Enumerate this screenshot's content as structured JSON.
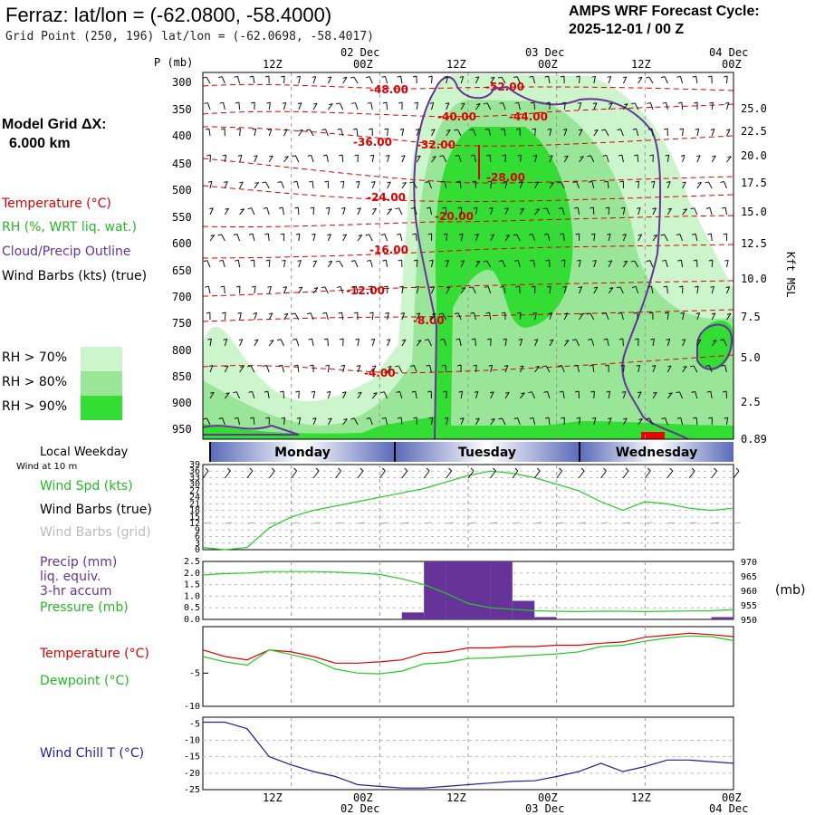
{
  "header": {
    "title": "Ferraz:  lat/lon = (-62.0800, -58.4000)",
    "subtitle": "Grid Point (250, 196) lat/lon = (-62.0698, -58.4017)",
    "cycle_line1": "AMPS WRF Forecast Cycle:",
    "cycle_line2": "2025-12-01 / 00  Z"
  },
  "model_grid": {
    "label": "Model Grid ΔX:",
    "value": "6.000 km"
  },
  "legend": {
    "temperature": "Temperature (°C)",
    "rh": "RH (%, WRT liq. wat.)",
    "cloud": "Cloud/Precip Outline",
    "wind": "Wind Barbs (kts) (true)",
    "rh70": "RH > 70%",
    "rh80": "RH > 80%",
    "rh90": "RH > 90%"
  },
  "colors": {
    "rh70": "#ccf5cc",
    "rh80": "#99e699",
    "rh90": "#33dd33",
    "temp": "#dd0000",
    "cloud": "#663399",
    "green_line": "#22cc22",
    "precip": "#663399",
    "windchill": "#1f1fa0"
  },
  "time_axis": {
    "top_dates": [
      "02 Dec",
      "03 Dec",
      "04 Dec"
    ],
    "hours": [
      "12Z",
      "00Z",
      "12Z",
      "00Z",
      "12Z",
      "00Z"
    ],
    "bottom_dates": [
      "02 Dec",
      "03 Dec",
      "04 Dec"
    ]
  },
  "weekdays": {
    "label": "Local Weekday",
    "days": [
      "Monday",
      "Tuesday",
      "Wednesday"
    ]
  },
  "cross_section": {
    "p_label": "P (mb)",
    "pressure_levels": [
      "300",
      "350",
      "400",
      "450",
      "500",
      "550",
      "600",
      "650",
      "700",
      "750",
      "800",
      "850",
      "900",
      "950"
    ],
    "right_axis_label": "Kft MSL",
    "height_ticks": [
      "25.0",
      "22.5",
      "20.0",
      "17.5",
      "15.0",
      "12.5",
      "10.0",
      "7.5",
      "5.0",
      "2.5",
      "0.89"
    ],
    "temp_labels": [
      "-48.00",
      "-52.00",
      "-40.00",
      "-44.00",
      "-36.00",
      "-32.00",
      "-28.00",
      "-24.00",
      "-20.00",
      "-16.00",
      "-12.00",
      "-8.00",
      "-4.00"
    ]
  },
  "panel_wind": {
    "wind_at": "Wind at 10 m",
    "spd_label": "Wind Spd (kts)",
    "barbs_true": "Wind Barbs (true)",
    "barbs_grid": "Wind Barbs (grid)",
    "y_ticks": [
      "39",
      "36",
      "33",
      "30",
      "27",
      "24",
      "21",
      "18",
      "15",
      "12",
      "9",
      "6",
      "3",
      "0"
    ]
  },
  "panel_precip": {
    "precip_label": "Precip (mm)",
    "liq": "liq. equiv.",
    "accum": "3-hr accum",
    "pressure_label": "Pressure (mb)",
    "y_ticks": [
      "2.5",
      "2.0",
      "1.5",
      "1.0",
      "0.5",
      "0.0"
    ],
    "right_ticks": [
      "970",
      "965",
      "960",
      "955",
      "950"
    ],
    "right_unit": "(mb)"
  },
  "panel_temp": {
    "temp_label": "Temperature (°C)",
    "dew_label": "Dewpoint (°C)",
    "y_ticks": [
      "-5",
      "-10"
    ]
  },
  "panel_chill": {
    "label": "Wind Chill T (°C)",
    "y_ticks": [
      "-5",
      "-10",
      "-15",
      "-20",
      "-25"
    ]
  },
  "chart_data": [
    {
      "type": "line",
      "title": "Wind Spd (kts)",
      "x": [
        0,
        3,
        6,
        9,
        12,
        15,
        18,
        21,
        24,
        27,
        30,
        33,
        36,
        39,
        42,
        45,
        48,
        51,
        54,
        57,
        60,
        63,
        66,
        69,
        72
      ],
      "series": [
        {
          "name": "Wind Spd (kts)",
          "values": [
            1,
            0,
            1,
            10,
            15,
            18,
            20,
            22,
            24,
            26,
            28,
            31,
            34,
            36,
            35,
            33,
            30,
            27,
            22,
            18,
            22,
            21,
            19,
            18,
            19
          ]
        }
      ],
      "ylim": [
        0,
        39
      ]
    },
    {
      "type": "bar",
      "title": "Precip (mm)",
      "x": [
        30,
        33,
        36,
        39,
        42,
        45,
        48,
        51,
        54,
        57,
        60,
        63,
        66,
        69,
        72
      ],
      "series": [
        {
          "name": "Precip (mm)",
          "values": [
            0.3,
            2.5,
            2.5,
            2.5,
            2.5,
            0.8,
            0.1,
            0,
            0,
            0,
            0,
            0,
            0,
            0,
            0.1
          ]
        }
      ],
      "ylim": [
        0,
        2.5
      ]
    },
    {
      "type": "line",
      "title": "Pressure (mb)",
      "x": [
        0,
        3,
        6,
        9,
        12,
        15,
        18,
        21,
        24,
        27,
        30,
        33,
        36,
        39,
        42,
        45,
        48,
        51,
        54,
        57,
        60,
        63,
        66,
        69,
        72
      ],
      "series": [
        {
          "name": "Pressure (mb)",
          "values": [
            965.3,
            965.8,
            966,
            966.5,
            966.5,
            966.5,
            966.3,
            966,
            965.5,
            964,
            962,
            959,
            955.5,
            954,
            953.5,
            953,
            952.8,
            952.7,
            952.8,
            952.8,
            952.7,
            952.8,
            952.9,
            953,
            953.3
          ]
        }
      ],
      "ylim": [
        950,
        970
      ]
    },
    {
      "type": "line",
      "title": "Temperature / Dewpoint (°C)",
      "x": [
        0,
        3,
        6,
        9,
        12,
        15,
        18,
        21,
        24,
        27,
        30,
        33,
        36,
        39,
        42,
        45,
        48,
        51,
        54,
        57,
        60,
        63,
        66,
        69,
        72
      ],
      "series": [
        {
          "name": "Temperature (°C)",
          "values": [
            -1.5,
            -2.5,
            -3,
            -1.5,
            -1.8,
            -2.5,
            -3.5,
            -3.5,
            -3.3,
            -3,
            -2,
            -1.8,
            -1.2,
            -1.2,
            -1,
            -1,
            -0.8,
            -0.8,
            -0.5,
            -0.3,
            0.4,
            0.7,
            1,
            0.8,
            0.5
          ]
        },
        {
          "name": "Dewpoint (°C)",
          "values": [
            -2.5,
            -3.3,
            -3.8,
            -1.5,
            -2.2,
            -3,
            -4.4,
            -5,
            -5.1,
            -4.7,
            -3.6,
            -3.4,
            -2.8,
            -2.7,
            -2.5,
            -2.3,
            -2.1,
            -1.8,
            -1,
            -0.8,
            -0.2,
            0.3,
            0.6,
            0.5,
            -0.1
          ]
        }
      ],
      "ylim": [
        -10,
        2
      ]
    },
    {
      "type": "line",
      "title": "Wind Chill T (°C)",
      "x": [
        0,
        3,
        6,
        9,
        12,
        15,
        18,
        21,
        24,
        27,
        30,
        33,
        36,
        39,
        42,
        45,
        48,
        51,
        54,
        57,
        60,
        63,
        66,
        69,
        72
      ],
      "series": [
        {
          "name": "Wind Chill T (°C)",
          "values": [
            -4.5,
            -4.5,
            -6.5,
            -15,
            -17.5,
            -19.5,
            -21,
            -23.5,
            -24,
            -24.5,
            -24.5,
            -24,
            -23.5,
            -23,
            -22.5,
            -22.3,
            -21,
            -19.5,
            -17,
            -19.5,
            -18,
            -16,
            -16,
            -16.5,
            -17
          ]
        }
      ],
      "ylim": [
        -25,
        -3
      ]
    }
  ]
}
